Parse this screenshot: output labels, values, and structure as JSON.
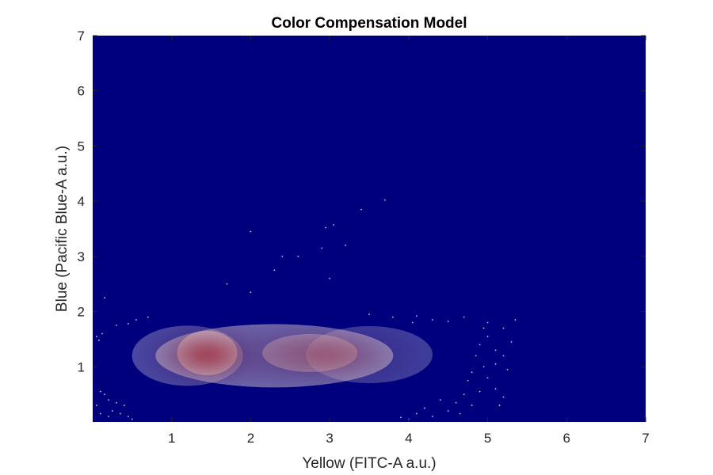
{
  "chart_data": {
    "type": "heatmap",
    "title": "Color Compensation Model",
    "xlabel": "Yellow (FITC-A a.u.)",
    "ylabel": "Blue (Pacific Blue-A a.u.)",
    "xlim": [
      0,
      7
    ],
    "ylim": [
      0,
      7
    ],
    "xticks": [
      1,
      2,
      3,
      4,
      5,
      6,
      7
    ],
    "yticks": [
      1,
      2,
      3,
      4,
      5,
      6,
      7
    ],
    "colormap": "jet",
    "grid": false,
    "legend": "none",
    "density_peaks": [
      {
        "x": 1.45,
        "y": 1.25,
        "relative_density": 1.0
      },
      {
        "x": 2.75,
        "y": 1.25,
        "relative_density": 0.7
      }
    ],
    "outlier_points": [
      [
        0.15,
        2.25
      ],
      [
        0.3,
        1.75
      ],
      [
        0.45,
        1.78
      ],
      [
        0.55,
        1.85
      ],
      [
        0.7,
        1.9
      ],
      [
        0.05,
        1.55
      ],
      [
        0.08,
        1.48
      ],
      [
        0.12,
        1.6
      ],
      [
        0.1,
        0.55
      ],
      [
        0.15,
        0.5
      ],
      [
        0.2,
        0.4
      ],
      [
        0.3,
        0.35
      ],
      [
        0.25,
        0.2
      ],
      [
        0.35,
        0.15
      ],
      [
        0.45,
        0.1
      ],
      [
        0.4,
        0.3
      ],
      [
        0.2,
        0.1
      ],
      [
        0.5,
        0.05
      ],
      [
        0.05,
        0.3
      ],
      [
        0.1,
        0.15
      ],
      [
        1.7,
        2.5
      ],
      [
        2.0,
        3.45
      ],
      [
        2.0,
        2.35
      ],
      [
        2.3,
        2.75
      ],
      [
        2.4,
        3.0
      ],
      [
        2.6,
        3.0
      ],
      [
        2.9,
        3.15
      ],
      [
        2.95,
        3.52
      ],
      [
        3.05,
        3.57
      ],
      [
        3.2,
        3.2
      ],
      [
        3.0,
        2.6
      ],
      [
        3.4,
        3.85
      ],
      [
        3.7,
        4.02
      ],
      [
        3.5,
        1.95
      ],
      [
        3.8,
        1.9
      ],
      [
        4.1,
        1.92
      ],
      [
        4.05,
        1.8
      ],
      [
        4.3,
        1.85
      ],
      [
        4.5,
        1.82
      ],
      [
        4.7,
        1.9
      ],
      [
        5.0,
        1.8
      ],
      [
        5.35,
        1.85
      ],
      [
        5.2,
        1.7
      ],
      [
        4.9,
        1.4
      ],
      [
        5.0,
        1.55
      ],
      [
        5.1,
        1.3
      ],
      [
        5.2,
        1.2
      ],
      [
        5.1,
        1.05
      ],
      [
        5.25,
        0.95
      ],
      [
        4.95,
        1.0
      ],
      [
        4.85,
        1.2
      ],
      [
        4.8,
        0.9
      ],
      [
        4.75,
        0.75
      ],
      [
        5.0,
        0.8
      ],
      [
        5.1,
        0.6
      ],
      [
        4.9,
        0.55
      ],
      [
        4.7,
        0.5
      ],
      [
        4.6,
        0.35
      ],
      [
        4.8,
        0.3
      ],
      [
        4.5,
        0.2
      ],
      [
        4.4,
        0.4
      ],
      [
        4.3,
        0.1
      ],
      [
        4.2,
        0.25
      ],
      [
        4.0,
        0.05
      ],
      [
        4.1,
        0.15
      ],
      [
        3.9,
        0.08
      ],
      [
        5.15,
        0.3
      ],
      [
        5.2,
        0.45
      ],
      [
        4.65,
        0.15
      ],
      [
        5.3,
        1.45
      ],
      [
        4.95,
        1.7
      ]
    ]
  }
}
